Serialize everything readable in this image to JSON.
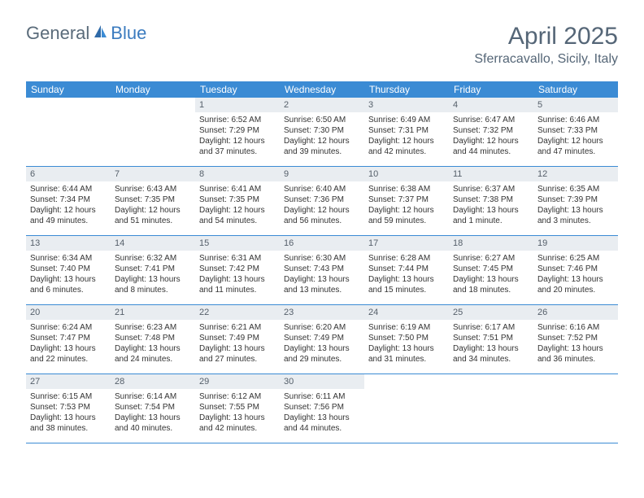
{
  "logo": {
    "text_general": "General",
    "text_blue": "Blue"
  },
  "header": {
    "title": "April 2025",
    "location": "Sferracavallo, Sicily, Italy"
  },
  "colors": {
    "header_bg": "#3b8bd4",
    "day_number_bg": "#e9edf1",
    "row_border": "#3b8bd4",
    "title_text": "#556677",
    "body_text": "#333333"
  },
  "weekdays": [
    "Sunday",
    "Monday",
    "Tuesday",
    "Wednesday",
    "Thursday",
    "Friday",
    "Saturday"
  ],
  "weeks": [
    [
      {
        "empty": true
      },
      {
        "empty": true
      },
      {
        "day": "1",
        "sunrise": "Sunrise: 6:52 AM",
        "sunset": "Sunset: 7:29 PM",
        "daylight": "Daylight: 12 hours and 37 minutes."
      },
      {
        "day": "2",
        "sunrise": "Sunrise: 6:50 AM",
        "sunset": "Sunset: 7:30 PM",
        "daylight": "Daylight: 12 hours and 39 minutes."
      },
      {
        "day": "3",
        "sunrise": "Sunrise: 6:49 AM",
        "sunset": "Sunset: 7:31 PM",
        "daylight": "Daylight: 12 hours and 42 minutes."
      },
      {
        "day": "4",
        "sunrise": "Sunrise: 6:47 AM",
        "sunset": "Sunset: 7:32 PM",
        "daylight": "Daylight: 12 hours and 44 minutes."
      },
      {
        "day": "5",
        "sunrise": "Sunrise: 6:46 AM",
        "sunset": "Sunset: 7:33 PM",
        "daylight": "Daylight: 12 hours and 47 minutes."
      }
    ],
    [
      {
        "day": "6",
        "sunrise": "Sunrise: 6:44 AM",
        "sunset": "Sunset: 7:34 PM",
        "daylight": "Daylight: 12 hours and 49 minutes."
      },
      {
        "day": "7",
        "sunrise": "Sunrise: 6:43 AM",
        "sunset": "Sunset: 7:35 PM",
        "daylight": "Daylight: 12 hours and 51 minutes."
      },
      {
        "day": "8",
        "sunrise": "Sunrise: 6:41 AM",
        "sunset": "Sunset: 7:35 PM",
        "daylight": "Daylight: 12 hours and 54 minutes."
      },
      {
        "day": "9",
        "sunrise": "Sunrise: 6:40 AM",
        "sunset": "Sunset: 7:36 PM",
        "daylight": "Daylight: 12 hours and 56 minutes."
      },
      {
        "day": "10",
        "sunrise": "Sunrise: 6:38 AM",
        "sunset": "Sunset: 7:37 PM",
        "daylight": "Daylight: 12 hours and 59 minutes."
      },
      {
        "day": "11",
        "sunrise": "Sunrise: 6:37 AM",
        "sunset": "Sunset: 7:38 PM",
        "daylight": "Daylight: 13 hours and 1 minute."
      },
      {
        "day": "12",
        "sunrise": "Sunrise: 6:35 AM",
        "sunset": "Sunset: 7:39 PM",
        "daylight": "Daylight: 13 hours and 3 minutes."
      }
    ],
    [
      {
        "day": "13",
        "sunrise": "Sunrise: 6:34 AM",
        "sunset": "Sunset: 7:40 PM",
        "daylight": "Daylight: 13 hours and 6 minutes."
      },
      {
        "day": "14",
        "sunrise": "Sunrise: 6:32 AM",
        "sunset": "Sunset: 7:41 PM",
        "daylight": "Daylight: 13 hours and 8 minutes."
      },
      {
        "day": "15",
        "sunrise": "Sunrise: 6:31 AM",
        "sunset": "Sunset: 7:42 PM",
        "daylight": "Daylight: 13 hours and 11 minutes."
      },
      {
        "day": "16",
        "sunrise": "Sunrise: 6:30 AM",
        "sunset": "Sunset: 7:43 PM",
        "daylight": "Daylight: 13 hours and 13 minutes."
      },
      {
        "day": "17",
        "sunrise": "Sunrise: 6:28 AM",
        "sunset": "Sunset: 7:44 PM",
        "daylight": "Daylight: 13 hours and 15 minutes."
      },
      {
        "day": "18",
        "sunrise": "Sunrise: 6:27 AM",
        "sunset": "Sunset: 7:45 PM",
        "daylight": "Daylight: 13 hours and 18 minutes."
      },
      {
        "day": "19",
        "sunrise": "Sunrise: 6:25 AM",
        "sunset": "Sunset: 7:46 PM",
        "daylight": "Daylight: 13 hours and 20 minutes."
      }
    ],
    [
      {
        "day": "20",
        "sunrise": "Sunrise: 6:24 AM",
        "sunset": "Sunset: 7:47 PM",
        "daylight": "Daylight: 13 hours and 22 minutes."
      },
      {
        "day": "21",
        "sunrise": "Sunrise: 6:23 AM",
        "sunset": "Sunset: 7:48 PM",
        "daylight": "Daylight: 13 hours and 24 minutes."
      },
      {
        "day": "22",
        "sunrise": "Sunrise: 6:21 AM",
        "sunset": "Sunset: 7:49 PM",
        "daylight": "Daylight: 13 hours and 27 minutes."
      },
      {
        "day": "23",
        "sunrise": "Sunrise: 6:20 AM",
        "sunset": "Sunset: 7:49 PM",
        "daylight": "Daylight: 13 hours and 29 minutes."
      },
      {
        "day": "24",
        "sunrise": "Sunrise: 6:19 AM",
        "sunset": "Sunset: 7:50 PM",
        "daylight": "Daylight: 13 hours and 31 minutes."
      },
      {
        "day": "25",
        "sunrise": "Sunrise: 6:17 AM",
        "sunset": "Sunset: 7:51 PM",
        "daylight": "Daylight: 13 hours and 34 minutes."
      },
      {
        "day": "26",
        "sunrise": "Sunrise: 6:16 AM",
        "sunset": "Sunset: 7:52 PM",
        "daylight": "Daylight: 13 hours and 36 minutes."
      }
    ],
    [
      {
        "day": "27",
        "sunrise": "Sunrise: 6:15 AM",
        "sunset": "Sunset: 7:53 PM",
        "daylight": "Daylight: 13 hours and 38 minutes."
      },
      {
        "day": "28",
        "sunrise": "Sunrise: 6:14 AM",
        "sunset": "Sunset: 7:54 PM",
        "daylight": "Daylight: 13 hours and 40 minutes."
      },
      {
        "day": "29",
        "sunrise": "Sunrise: 6:12 AM",
        "sunset": "Sunset: 7:55 PM",
        "daylight": "Daylight: 13 hours and 42 minutes."
      },
      {
        "day": "30",
        "sunrise": "Sunrise: 6:11 AM",
        "sunset": "Sunset: 7:56 PM",
        "daylight": "Daylight: 13 hours and 44 minutes."
      },
      {
        "empty": true
      },
      {
        "empty": true
      },
      {
        "empty": true
      }
    ]
  ]
}
